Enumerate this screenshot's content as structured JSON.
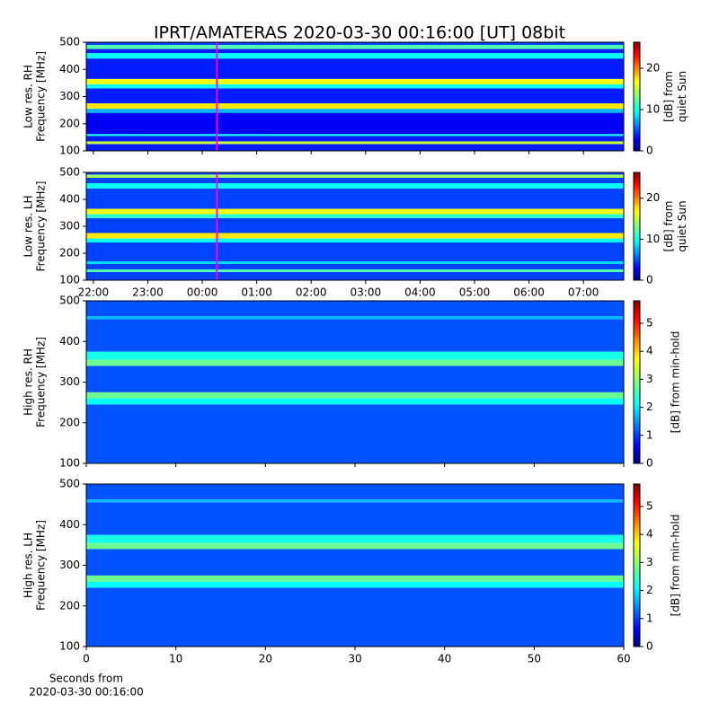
{
  "chart_data": [
    {
      "type": "heatmap",
      "title": "IPRT/AMATERAS 2020-03-30 00:16:00 [UT]   08bit",
      "ylabel": [
        "Low res. RH",
        "Frequency [MHz]"
      ],
      "xlim": [
        21.87,
        31.74
      ],
      "xticks": [
        22,
        23,
        24,
        25,
        26,
        27,
        28,
        29,
        30,
        31
      ],
      "xtick_labels": false,
      "ylim": [
        100,
        500
      ],
      "yticks": [
        100,
        200,
        300,
        400,
        500
      ],
      "ybins": [
        100,
        125,
        135,
        155,
        162,
        240,
        255,
        275,
        330,
        345,
        365,
        440,
        460,
        475,
        490,
        500
      ],
      "values": [
        4,
        15,
        4,
        10,
        3,
        8,
        17,
        4,
        10,
        16,
        4,
        10,
        4,
        12,
        5
      ],
      "marker_x": 24.27,
      "marker_color": "#ff00ff",
      "clim": [
        0,
        26.3
      ],
      "cticks": [
        0,
        10,
        20
      ],
      "clabel": [
        "[dB] from",
        "quiet Sun"
      ]
    },
    {
      "type": "heatmap",
      "ylabel": [
        "Low res. LH",
        "Frequency [MHz]"
      ],
      "xlim": [
        21.87,
        31.74
      ],
      "xticks": [
        {
          "value": 22,
          "label": "22:00"
        },
        {
          "value": 23,
          "label": "23:00"
        },
        {
          "value": 24,
          "label": "00:00"
        },
        {
          "value": 25,
          "label": "01:00"
        },
        {
          "value": 26,
          "label": "02:00"
        },
        {
          "value": 27,
          "label": "03:00"
        },
        {
          "value": 28,
          "label": "04:00"
        },
        {
          "value": 29,
          "label": "05:00"
        },
        {
          "value": 30,
          "label": "06:00"
        },
        {
          "value": 31,
          "label": "07:00"
        }
      ],
      "xtick_labels": true,
      "ylim": [
        100,
        500
      ],
      "yticks": [
        100,
        200,
        300,
        400,
        500
      ],
      "ybins": [
        100,
        130,
        140,
        160,
        170,
        240,
        255,
        275,
        330,
        345,
        365,
        440,
        460,
        480,
        492,
        500
      ],
      "values": [
        5,
        12,
        5,
        9,
        5,
        10,
        17,
        5,
        11,
        16,
        5,
        10,
        5,
        14,
        5
      ],
      "marker_x": 24.27,
      "marker_color": "#ff00ff",
      "clim": [
        0,
        26.3
      ],
      "cticks": [
        0,
        10,
        20
      ],
      "clabel": [
        "[dB] from",
        "quiet Sun"
      ]
    },
    {
      "type": "heatmap",
      "ylabel": [
        "High res. RH",
        "Frequency [MHz]"
      ],
      "xlim": [
        0,
        60
      ],
      "xticks": [
        0,
        10,
        20,
        30,
        40,
        50,
        60
      ],
      "xtick_labels": false,
      "ylim": [
        100,
        500
      ],
      "yticks": [
        100,
        200,
        300,
        400,
        500
      ],
      "ybins": [
        100,
        245,
        260,
        275,
        340,
        355,
        375,
        455,
        462,
        500
      ],
      "values": [
        1.2,
        2.2,
        2.8,
        1.2,
        2.8,
        2.3,
        1.2,
        1.8,
        1.2
      ],
      "clim": [
        0,
        5.8
      ],
      "cticks": [
        0,
        1,
        2,
        3,
        4,
        5
      ],
      "clabel": [
        "[dB] from min-hold"
      ]
    },
    {
      "type": "heatmap",
      "ylabel": [
        "High res. LH",
        "Frequency [MHz]"
      ],
      "xlim": [
        0,
        60
      ],
      "xticks": [
        0,
        10,
        20,
        30,
        40,
        50,
        60
      ],
      "xtick_labels": true,
      "xlabel": [
        "Seconds from",
        "2020-03-30 00:16:00"
      ],
      "ylim": [
        100,
        500
      ],
      "yticks": [
        100,
        200,
        300,
        400,
        500
      ],
      "ybins": [
        100,
        245,
        260,
        275,
        340,
        355,
        375,
        455,
        462,
        500
      ],
      "values": [
        1.2,
        2.2,
        2.8,
        1.2,
        2.8,
        2.3,
        1.2,
        1.8,
        1.2
      ],
      "clim": [
        0,
        5.8
      ],
      "cticks": [
        0,
        1,
        2,
        3,
        4,
        5
      ],
      "clabel": [
        "[dB] from min-hold"
      ]
    }
  ]
}
